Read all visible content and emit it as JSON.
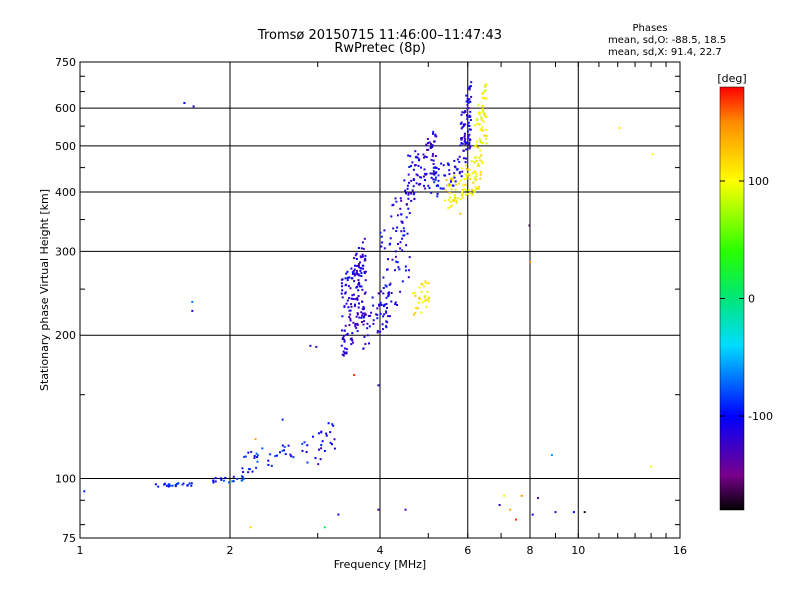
{
  "chart_data": {
    "type": "scatter",
    "title": "Tromsø 20150715 11:46:00–11:47:43",
    "subtitle": "RwPretec (8p)",
    "xlabel": "Frequency [MHz]",
    "ylabel": "Stationary phase Virtual Height [km]",
    "x_scale": "log",
    "y_scale": "log",
    "xlim": [
      1,
      16
    ],
    "ylim": [
      75,
      750
    ],
    "x_ticks": [
      1,
      2,
      4,
      6,
      8,
      10,
      16
    ],
    "y_ticks": [
      75,
      100,
      200,
      300,
      400,
      500,
      600,
      750
    ],
    "grid": true,
    "stats": {
      "title": "Phases",
      "line_o": "mean, sd,O: -88.5, 18.5",
      "line_x": "mean, sd,X:  91.4, 22.7"
    },
    "colorbar": {
      "label": "[deg]",
      "range": [
        -180,
        180
      ],
      "ticks": [
        100,
        0,
        -100
      ],
      "colors": [
        "#ff0000",
        "#ffa500",
        "#ffff00",
        "#00ff00",
        "#00ffff",
        "#0000ff",
        "#8000a0",
        "#000000"
      ]
    },
    "series": [
      {
        "segments": [
          {
            "x0": 1.42,
            "x1": 1.7,
            "y0": 96,
            "y1": 98,
            "phase": -95,
            "n": 24
          },
          {
            "x0": 1.85,
            "x1": 2.15,
            "y0": 98,
            "y1": 101,
            "phase": -90,
            "n": 18
          },
          {
            "x0": 2.1,
            "x1": 2.9,
            "y0": 104,
            "y1": 118,
            "phase": -95,
            "n": 40
          },
          {
            "x0": 2.9,
            "x1": 3.25,
            "y0": 108,
            "y1": 130,
            "phase": -110,
            "n": 22
          },
          {
            "x0": 3.35,
            "x1": 3.75,
            "y0": 190,
            "y1": 300,
            "phase": -115,
            "n": 170
          },
          {
            "x0": 3.7,
            "x1": 4.2,
            "y0": 195,
            "y1": 250,
            "phase": -110,
            "n": 50
          },
          {
            "x0": 4.0,
            "x1": 4.6,
            "y0": 220,
            "y1": 400,
            "phase": -110,
            "n": 80
          },
          {
            "x0": 4.55,
            "x1": 5.2,
            "y0": 395,
            "y1": 520,
            "phase": -115,
            "n": 90
          },
          {
            "x0": 5.0,
            "x1": 5.8,
            "y0": 395,
            "y1": 470,
            "phase": -105,
            "n": 50
          },
          {
            "x0": 5.8,
            "x1": 6.1,
            "y0": 450,
            "y1": 650,
            "phase": -115,
            "n": 80
          }
        ]
      },
      {
        "segments": [
          {
            "x0": 4.65,
            "x1": 5.05,
            "y0": 220,
            "y1": 260,
            "phase": 110,
            "n": 30
          },
          {
            "x0": 5.4,
            "x1": 6.4,
            "y0": 380,
            "y1": 460,
            "phase": 105,
            "n": 80
          },
          {
            "x0": 6.2,
            "x1": 6.55,
            "y0": 430,
            "y1": 650,
            "phase": 100,
            "n": 70
          }
        ]
      }
    ],
    "points": [
      {
        "x": 1.62,
        "y": 615,
        "phase": -100
      },
      {
        "x": 1.69,
        "y": 605,
        "phase": -120
      },
      {
        "x": 1.68,
        "y": 235,
        "phase": -70
      },
      {
        "x": 1.68,
        "y": 225,
        "phase": -110
      },
      {
        "x": 1.02,
        "y": 94,
        "phase": -90
      },
      {
        "x": 2.25,
        "y": 121,
        "phase": 140
      },
      {
        "x": 2.2,
        "y": 79,
        "phase": 120
      },
      {
        "x": 2.55,
        "y": 133,
        "phase": -90
      },
      {
        "x": 2.9,
        "y": 190,
        "phase": -120
      },
      {
        "x": 2.98,
        "y": 189,
        "phase": -120
      },
      {
        "x": 3.1,
        "y": 79,
        "phase": 10
      },
      {
        "x": 3.3,
        "y": 84,
        "phase": -120
      },
      {
        "x": 3.55,
        "y": 165,
        "phase": 170
      },
      {
        "x": 3.97,
        "y": 157,
        "phase": -120
      },
      {
        "x": 3.97,
        "y": 86,
        "phase": -130
      },
      {
        "x": 4.5,
        "y": 86,
        "phase": -130
      },
      {
        "x": 4.3,
        "y": 300,
        "phase": -110
      },
      {
        "x": 5.8,
        "y": 360,
        "phase": 130
      },
      {
        "x": 6.95,
        "y": 88,
        "phase": -120
      },
      {
        "x": 7.1,
        "y": 92,
        "phase": 110
      },
      {
        "x": 7.3,
        "y": 86,
        "phase": 140
      },
      {
        "x": 7.5,
        "y": 82,
        "phase": 170
      },
      {
        "x": 7.7,
        "y": 92,
        "phase": 150
      },
      {
        "x": 7.98,
        "y": 340,
        "phase": -170
      },
      {
        "x": 8.0,
        "y": 285,
        "phase": 150
      },
      {
        "x": 8.1,
        "y": 84,
        "phase": -110
      },
      {
        "x": 8.3,
        "y": 91,
        "phase": -140
      },
      {
        "x": 8.85,
        "y": 112,
        "phase": -60
      },
      {
        "x": 9.0,
        "y": 85,
        "phase": -120
      },
      {
        "x": 9.8,
        "y": 85,
        "phase": -100
      },
      {
        "x": 10.3,
        "y": 85,
        "phase": -170
      },
      {
        "x": 12.1,
        "y": 545,
        "phase": 110
      },
      {
        "x": 14.1,
        "y": 480,
        "phase": 100
      },
      {
        "x": 14.0,
        "y": 106,
        "phase": 100
      }
    ]
  }
}
